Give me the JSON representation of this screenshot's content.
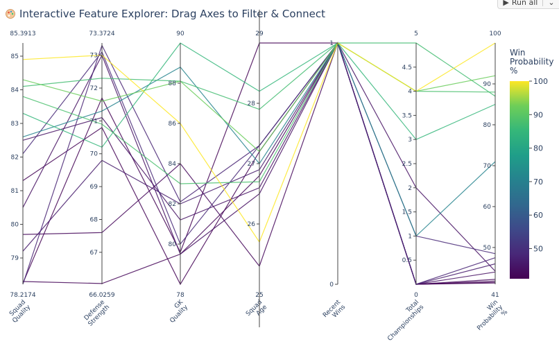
{
  "header": {
    "title": "Interactive Feature Explorer: Drag Axes to Filter & Connect"
  },
  "toolbar": {
    "run_all_label": "Run all"
  },
  "colorbar": {
    "title": [
      "Win",
      "Probability",
      "%"
    ],
    "ticks": [
      100,
      90,
      80,
      70,
      60,
      50
    ],
    "min": 41,
    "max": 100
  },
  "chart_data": {
    "type": "parallel_coordinates",
    "colorscale": "viridis",
    "color_dimension": "Win Probability %",
    "dimensions": [
      {
        "label": [
          "Squad",
          "Quality"
        ],
        "range": [
          78.2174,
          85.3913
        ],
        "top_label": "85.3913",
        "bottom_label": "78.2174",
        "ticks": [
          79,
          80,
          81,
          82,
          83,
          84,
          85
        ]
      },
      {
        "label": [
          "Defense",
          "Strength"
        ],
        "range": [
          66.0259,
          73.3724
        ],
        "top_label": "73.3724",
        "bottom_label": "66.0259",
        "ticks": [
          67,
          68,
          69,
          70,
          71,
          72,
          73
        ]
      },
      {
        "label": [
          "GK",
          "Quality"
        ],
        "range": [
          78,
          90
        ],
        "top_label": "90",
        "bottom_label": "78",
        "ticks": [
          80,
          82,
          84,
          86,
          88
        ]
      },
      {
        "label": [
          "Squad",
          "Age"
        ],
        "range": [
          25,
          29
        ],
        "top_label": "29",
        "bottom_label": "25",
        "ticks": [
          26,
          27,
          28
        ]
      },
      {
        "label": [
          "Recent",
          "Wins"
        ],
        "range": [
          0,
          1
        ],
        "top_label": "",
        "bottom_label": "",
        "ticks": [
          0,
          1
        ]
      },
      {
        "label": [
          "Total",
          "Championships"
        ],
        "range": [
          0,
          5
        ],
        "top_label": "5",
        "bottom_label": "0",
        "ticks": [
          0.5,
          1,
          1.5,
          2,
          2.5,
          3,
          3.5,
          4,
          4.5
        ]
      },
      {
        "label": [
          "Win",
          "Probability",
          "%"
        ],
        "range": [
          41,
          100
        ],
        "top_label": "100",
        "bottom_label": "41",
        "ticks": [
          50,
          60,
          70,
          80,
          90
        ]
      }
    ],
    "rows": [
      [
        84.9,
        73.0,
        86.0,
        25.7,
        1,
        4,
        100
      ],
      [
        84.3,
        71.6,
        88.1,
        27.2,
        1,
        4,
        92
      ],
      [
        84.1,
        72.3,
        88.1,
        27.9,
        1,
        5,
        87
      ],
      [
        83.8,
        70.9,
        83.0,
        26.7,
        1,
        4,
        88
      ],
      [
        83.3,
        70.2,
        90.0,
        28.2,
        1,
        3,
        85
      ],
      [
        82.6,
        71.3,
        88.8,
        27.0,
        1,
        1,
        71
      ],
      [
        82.5,
        71.1,
        81.2,
        26.6,
        1,
        2,
        44.2
      ],
      [
        82.1,
        73.1,
        80.0,
        27.3,
        1,
        1,
        48.5
      ],
      [
        81.3,
        70.8,
        78.0,
        27.2,
        1,
        0,
        41.5
      ],
      [
        80.5,
        73.0,
        79.5,
        26.5,
        1,
        0,
        44
      ],
      [
        79.7,
        67.6,
        84.0,
        25.3,
        1,
        0,
        42.2
      ],
      [
        79.2,
        69.8,
        82.0,
        26.9,
        1,
        0,
        46
      ],
      [
        78.3,
        66.05,
        79.5,
        26.8,
        1,
        0,
        41.8
      ],
      [
        78.25,
        71.7,
        79.6,
        29.0,
        1,
        0,
        41.3
      ],
      [
        78.22,
        73.3,
        82.1,
        27.3,
        1,
        0,
        47.5
      ]
    ]
  }
}
